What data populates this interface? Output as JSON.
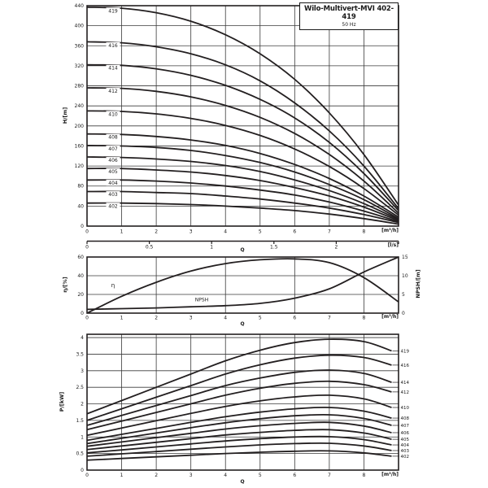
{
  "title": {
    "name": "Wilo-Multivert-MVI 402-419",
    "freq": "50 Hz"
  },
  "axes": {
    "head_y_label": "H/[m]",
    "eff_y_label": "η/[%]",
    "npsh_y_label": "NPSH/[m]",
    "power_y_label": "P/[kW]",
    "flow_unit": "[m³/h]",
    "flow_unit_ls": "[l/s]",
    "flow_symbol": "Q"
  },
  "chart_data": [
    {
      "type": "line",
      "id": "head",
      "title": "H-Q curves per model",
      "xlabel": "Q [m³/h]",
      "ylabel": "H [m]",
      "xlim": [
        0,
        9
      ],
      "ylim": [
        0,
        440
      ],
      "y_ticks": [
        0,
        40,
        80,
        120,
        160,
        200,
        240,
        280,
        320,
        360,
        400,
        440
      ],
      "x_ticks": [
        0,
        1,
        2,
        3,
        4,
        5,
        6,
        7,
        8
      ],
      "x2_ticks_ls": [
        0,
        0.5,
        1,
        1.5,
        2
      ],
      "grid": true,
      "x": [
        0,
        1,
        2,
        3,
        4,
        5,
        6,
        7,
        8,
        9
      ],
      "series": [
        {
          "name": "419",
          "values": [
            437,
            435,
            426,
            409,
            382,
            344,
            293,
            226,
            143,
            42
          ]
        },
        {
          "name": "416",
          "values": [
            368,
            366,
            358,
            344,
            322,
            290,
            246,
            190,
            120,
            35
          ]
        },
        {
          "name": "414",
          "values": [
            322,
            321,
            314,
            301,
            281,
            253,
            216,
            167,
            105,
            31
          ]
        },
        {
          "name": "412",
          "values": [
            276,
            275,
            269,
            258,
            241,
            217,
            185,
            143,
            90,
            26
          ]
        },
        {
          "name": "410",
          "values": [
            230,
            229,
            224,
            215,
            201,
            181,
            154,
            119,
            75,
            22
          ]
        },
        {
          "name": "408",
          "values": [
            184,
            183,
            179,
            172,
            161,
            145,
            123,
            95,
            60,
            18
          ]
        },
        {
          "name": "407",
          "values": [
            161,
            160,
            157,
            151,
            141,
            127,
            108,
            83,
            53,
            15
          ]
        },
        {
          "name": "406",
          "values": [
            138,
            137,
            134,
            129,
            121,
            109,
            92,
            71,
            45,
            13
          ]
        },
        {
          "name": "405",
          "values": [
            115,
            115,
            112,
            108,
            101,
            91,
            77,
            60,
            38,
            11
          ]
        },
        {
          "name": "404",
          "values": [
            92,
            92,
            90,
            86,
            80,
            72,
            62,
            48,
            30,
            9
          ]
        },
        {
          "name": "403",
          "values": [
            69,
            69,
            67,
            65,
            60,
            54,
            46,
            36,
            23,
            7
          ]
        },
        {
          "name": "402",
          "values": [
            46,
            46,
            45,
            43,
            40,
            36,
            31,
            24,
            15,
            4
          ]
        }
      ]
    },
    {
      "type": "line",
      "id": "efficiency",
      "title": "Efficiency and NPSH",
      "xlabel": "Q [m³/h]",
      "xlim": [
        0,
        9
      ],
      "left_ylim": [
        0,
        60
      ],
      "left_ticks": [
        0,
        20,
        40,
        60
      ],
      "right_ylim": [
        0,
        15
      ],
      "right_ticks": [
        0,
        5,
        10,
        15
      ],
      "x_ticks": [
        0,
        1,
        2,
        3,
        4,
        5,
        6,
        7,
        8
      ],
      "grid": true,
      "x": [
        0,
        1,
        2,
        3,
        4,
        5,
        6,
        7,
        8,
        9
      ],
      "series": [
        {
          "name": "η",
          "axis": "left",
          "values": [
            0,
            18,
            33,
            45,
            53,
            57,
            58,
            54,
            38,
            12
          ]
        },
        {
          "name": "NPSH",
          "axis": "right",
          "values": [
            1.0,
            1.2,
            1.4,
            1.7,
            2.0,
            2.6,
            4.0,
            6.5,
            11.0,
            15.0
          ]
        }
      ]
    },
    {
      "type": "line",
      "id": "power",
      "title": "P-Q curves per model",
      "xlabel": "Q [m³/h]",
      "ylabel": "P [kW]",
      "xlim": [
        0,
        9
      ],
      "ylim": [
        0,
        4.1
      ],
      "y_ticks": [
        0,
        0.5,
        1,
        1.5,
        2,
        2.5,
        3,
        3.5,
        4
      ],
      "x_ticks": [
        0,
        1,
        2,
        3,
        4,
        5,
        6,
        7,
        8
      ],
      "grid": true,
      "x": [
        0,
        1,
        2,
        3,
        4,
        5,
        6,
        7,
        8,
        9
      ],
      "series": [
        {
          "name": "419",
          "values": [
            1.7,
            2.1,
            2.5,
            2.9,
            3.3,
            3.62,
            3.85,
            3.95,
            3.88,
            3.6
          ]
        },
        {
          "name": "416",
          "values": [
            1.5,
            1.85,
            2.2,
            2.55,
            2.9,
            3.18,
            3.38,
            3.47,
            3.4,
            3.17
          ]
        },
        {
          "name": "414",
          "values": [
            1.35,
            1.65,
            1.95,
            2.25,
            2.55,
            2.78,
            2.95,
            3.02,
            2.92,
            2.65
          ]
        },
        {
          "name": "412",
          "values": [
            1.22,
            1.48,
            1.74,
            2.0,
            2.26,
            2.47,
            2.62,
            2.68,
            2.58,
            2.36
          ]
        },
        {
          "name": "410",
          "values": [
            1.05,
            1.27,
            1.49,
            1.71,
            1.92,
            2.09,
            2.21,
            2.26,
            2.15,
            1.89
          ]
        },
        {
          "name": "408",
          "values": [
            0.9,
            1.08,
            1.26,
            1.44,
            1.61,
            1.75,
            1.85,
            1.89,
            1.78,
            1.57
          ]
        },
        {
          "name": "407",
          "values": [
            0.8,
            0.96,
            1.12,
            1.28,
            1.43,
            1.55,
            1.64,
            1.67,
            1.56,
            1.35
          ]
        },
        {
          "name": "406",
          "values": [
            0.72,
            0.85,
            0.98,
            1.11,
            1.24,
            1.34,
            1.41,
            1.44,
            1.33,
            1.13
          ]
        },
        {
          "name": "405",
          "values": [
            0.62,
            0.73,
            0.84,
            0.95,
            1.06,
            1.14,
            1.2,
            1.22,
            1.12,
            0.93
          ]
        },
        {
          "name": "404",
          "values": [
            0.52,
            0.61,
            0.7,
            0.79,
            0.88,
            0.95,
            1.0,
            1.01,
            0.92,
            0.76
          ]
        },
        {
          "name": "403",
          "values": [
            0.42,
            0.49,
            0.56,
            0.63,
            0.7,
            0.76,
            0.8,
            0.81,
            0.73,
            0.59
          ]
        },
        {
          "name": "402",
          "values": [
            0.3,
            0.35,
            0.4,
            0.45,
            0.5,
            0.54,
            0.57,
            0.58,
            0.52,
            0.42
          ]
        }
      ]
    }
  ]
}
